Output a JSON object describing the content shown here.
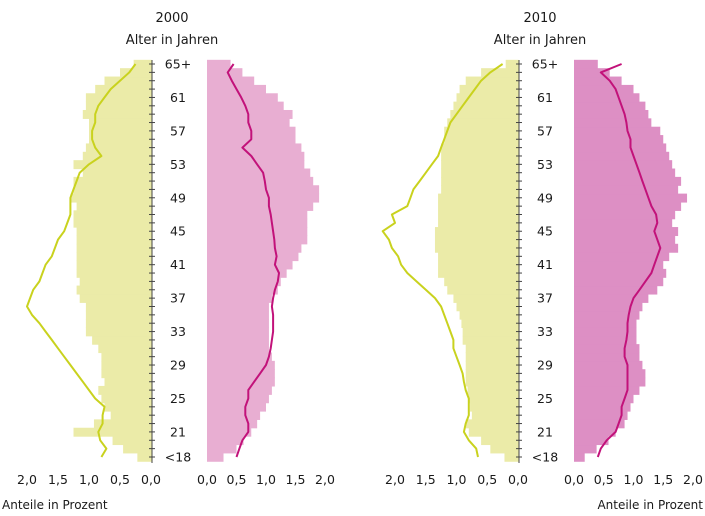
{
  "chart_data": [
    {
      "type": "bar",
      "title": "2000",
      "subtitle": "Alter in Jahren",
      "xlabel": "Anteile in Prozent",
      "x_ticks_left": [
        "2,0",
        "1,5",
        "1,0",
        "0,5",
        "0,0"
      ],
      "x_ticks_right": [
        "0,0",
        "0,5",
        "1,0",
        "1,5",
        "2,0"
      ],
      "xlim": [
        0,
        2
      ],
      "age_labels": [
        {
          "age": 18,
          "text": "<18"
        },
        {
          "age": 21,
          "text": "21"
        },
        {
          "age": 25,
          "text": "25"
        },
        {
          "age": 29,
          "text": "29"
        },
        {
          "age": 33,
          "text": "33"
        },
        {
          "age": 37,
          "text": "37"
        },
        {
          "age": 41,
          "text": "41"
        },
        {
          "age": 45,
          "text": "45"
        },
        {
          "age": 49,
          "text": "49"
        },
        {
          "age": 53,
          "text": "53"
        },
        {
          "age": 57,
          "text": "57"
        },
        {
          "age": 61,
          "text": "61"
        },
        {
          "age": 65,
          "text": "65+"
        }
      ],
      "ages": [
        18,
        19,
        20,
        21,
        22,
        23,
        24,
        25,
        26,
        27,
        28,
        29,
        30,
        31,
        32,
        33,
        34,
        35,
        36,
        37,
        38,
        39,
        40,
        41,
        42,
        43,
        44,
        45,
        46,
        47,
        48,
        49,
        50,
        51,
        52,
        53,
        54,
        55,
        56,
        57,
        58,
        59,
        60,
        61,
        62,
        63,
        64,
        65
      ],
      "series": [
        {
          "side": "left",
          "kind": "bars",
          "values": [
            0.22,
            0.45,
            0.62,
            1.25,
            0.92,
            0.65,
            0.75,
            0.8,
            0.85,
            0.75,
            0.8,
            0.8,
            0.8,
            0.85,
            0.95,
            1.05,
            1.05,
            1.05,
            1.05,
            1.15,
            1.2,
            1.15,
            1.2,
            1.2,
            1.2,
            1.2,
            1.2,
            1.2,
            1.25,
            1.25,
            1.2,
            1.3,
            1.25,
            1.25,
            1.1,
            1.25,
            1.1,
            1.05,
            1.0,
            1.0,
            1.0,
            1.1,
            1.05,
            1.05,
            0.9,
            0.75,
            0.5,
            0.28
          ]
        },
        {
          "side": "left",
          "kind": "line",
          "values": [
            0.8,
            0.72,
            0.82,
            0.85,
            0.78,
            0.78,
            0.75,
            0.9,
            1.0,
            1.1,
            1.2,
            1.3,
            1.4,
            1.5,
            1.6,
            1.7,
            1.8,
            1.92,
            2.0,
            1.95,
            1.9,
            1.8,
            1.75,
            1.7,
            1.6,
            1.55,
            1.5,
            1.4,
            1.35,
            1.3,
            1.3,
            1.3,
            1.25,
            1.2,
            1.15,
            1.0,
            0.8,
            0.9,
            0.95,
            0.95,
            0.9,
            0.9,
            0.85,
            0.75,
            0.65,
            0.5,
            0.35,
            0.25
          ]
        },
        {
          "side": "right",
          "kind": "bars",
          "values": [
            0.28,
            0.5,
            0.62,
            0.75,
            0.85,
            0.9,
            1.0,
            1.05,
            1.1,
            1.15,
            1.15,
            1.15,
            1.1,
            1.05,
            1.05,
            1.05,
            1.05,
            1.05,
            1.05,
            1.1,
            1.2,
            1.25,
            1.35,
            1.45,
            1.55,
            1.6,
            1.7,
            1.7,
            1.7,
            1.7,
            1.8,
            1.9,
            1.9,
            1.8,
            1.75,
            1.65,
            1.65,
            1.6,
            1.5,
            1.5,
            1.4,
            1.45,
            1.3,
            1.2,
            1.0,
            0.8,
            0.6,
            0.4
          ]
        },
        {
          "side": "right",
          "kind": "line",
          "values": [
            0.5,
            0.55,
            0.6,
            0.7,
            0.7,
            0.65,
            0.65,
            0.7,
            0.7,
            0.8,
            0.9,
            1.0,
            1.05,
            1.08,
            1.1,
            1.12,
            1.12,
            1.12,
            1.1,
            1.12,
            1.15,
            1.2,
            1.22,
            1.15,
            1.18,
            1.15,
            1.14,
            1.12,
            1.1,
            1.08,
            1.05,
            1.05,
            1.0,
            0.98,
            0.95,
            0.85,
            0.75,
            0.6,
            0.75,
            0.75,
            0.7,
            0.7,
            0.65,
            0.58,
            0.5,
            0.42,
            0.35,
            0.45
          ]
        }
      ]
    },
    {
      "type": "bar",
      "title": "2010",
      "subtitle": "Alter in Jahren",
      "xlabel": "Anteile in Prozent",
      "x_ticks_left": [
        "2,0",
        "1,5",
        "1,0",
        "0,5",
        "0,0"
      ],
      "x_ticks_right": [
        "0,0",
        "0,5",
        "1,0",
        "1,5",
        "2,0"
      ],
      "xlim": [
        0,
        2
      ],
      "age_labels": [
        {
          "age": 18,
          "text": "<18"
        },
        {
          "age": 21,
          "text": "21"
        },
        {
          "age": 25,
          "text": "25"
        },
        {
          "age": 29,
          "text": "29"
        },
        {
          "age": 33,
          "text": "33"
        },
        {
          "age": 37,
          "text": "37"
        },
        {
          "age": 41,
          "text": "41"
        },
        {
          "age": 45,
          "text": "45"
        },
        {
          "age": 49,
          "text": "49"
        },
        {
          "age": 53,
          "text": "53"
        },
        {
          "age": 57,
          "text": "57"
        },
        {
          "age": 61,
          "text": "61"
        },
        {
          "age": 65,
          "text": "65+"
        }
      ],
      "ages": [
        18,
        19,
        20,
        21,
        22,
        23,
        24,
        25,
        26,
        27,
        28,
        29,
        30,
        31,
        32,
        33,
        34,
        35,
        36,
        37,
        38,
        39,
        40,
        41,
        42,
        43,
        44,
        45,
        46,
        47,
        48,
        49,
        50,
        51,
        52,
        53,
        54,
        55,
        56,
        57,
        58,
        59,
        60,
        61,
        62,
        63,
        64,
        65
      ],
      "series": [
        {
          "side": "left",
          "kind": "bars",
          "values": [
            0.22,
            0.45,
            0.6,
            0.8,
            0.85,
            0.75,
            0.78,
            0.8,
            0.82,
            0.85,
            0.85,
            0.85,
            0.85,
            0.85,
            0.9,
            0.9,
            0.92,
            0.95,
            1.0,
            1.05,
            1.15,
            1.2,
            1.3,
            1.3,
            1.3,
            1.35,
            1.35,
            1.35,
            1.3,
            1.3,
            1.3,
            1.3,
            1.25,
            1.25,
            1.25,
            1.25,
            1.25,
            1.25,
            1.2,
            1.2,
            1.15,
            1.1,
            1.05,
            1.0,
            0.95,
            0.85,
            0.6,
            0.2
          ]
        },
        {
          "side": "left",
          "kind": "line",
          "values": [
            0.65,
            0.68,
            0.8,
            0.88,
            0.85,
            0.8,
            0.8,
            0.8,
            0.85,
            0.88,
            0.9,
            0.95,
            1.0,
            1.05,
            1.05,
            1.1,
            1.15,
            1.2,
            1.25,
            1.35,
            1.5,
            1.65,
            1.8,
            1.9,
            1.95,
            2.05,
            2.1,
            2.2,
            2.0,
            2.05,
            1.8,
            1.75,
            1.7,
            1.6,
            1.5,
            1.4,
            1.3,
            1.25,
            1.2,
            1.15,
            1.1,
            1.0,
            0.9,
            0.8,
            0.7,
            0.6,
            0.45,
            0.25
          ]
        },
        {
          "side": "right",
          "kind": "bars",
          "values": [
            0.18,
            0.38,
            0.58,
            0.7,
            0.85,
            0.9,
            0.95,
            1.0,
            1.1,
            1.2,
            1.2,
            1.15,
            1.1,
            1.1,
            1.05,
            1.05,
            1.05,
            1.1,
            1.15,
            1.25,
            1.4,
            1.5,
            1.55,
            1.5,
            1.6,
            1.75,
            1.7,
            1.75,
            1.65,
            1.7,
            1.8,
            1.9,
            1.75,
            1.8,
            1.7,
            1.65,
            1.6,
            1.55,
            1.5,
            1.45,
            1.3,
            1.25,
            1.2,
            1.1,
            1.0,
            0.8,
            0.6,
            0.4
          ]
        },
        {
          "side": "right",
          "kind": "line",
          "values": [
            0.4,
            0.45,
            0.55,
            0.7,
            0.75,
            0.8,
            0.8,
            0.85,
            0.9,
            0.9,
            0.9,
            0.9,
            0.85,
            0.85,
            0.88,
            0.9,
            0.9,
            0.92,
            0.95,
            1.0,
            1.1,
            1.2,
            1.3,
            1.35,
            1.4,
            1.45,
            1.4,
            1.35,
            1.4,
            1.38,
            1.3,
            1.25,
            1.2,
            1.15,
            1.1,
            1.05,
            1.0,
            0.95,
            0.95,
            0.9,
            0.88,
            0.85,
            0.8,
            0.75,
            0.7,
            0.6,
            0.45,
            0.8
          ]
        }
      ]
    }
  ],
  "colors": {
    "left_bar": "#ebeba8",
    "left_line": "#c9d21e",
    "right_bar_2000": "#e8aed2",
    "right_bar_2010": "#dd8fc4",
    "right_line": "#c2127a",
    "axis": "#444444",
    "text": "#1a1a1a"
  }
}
